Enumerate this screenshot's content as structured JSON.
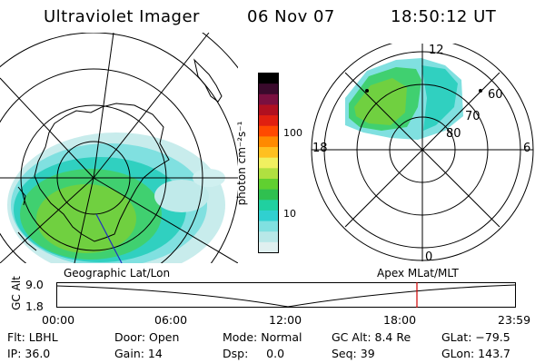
{
  "header": {
    "instrument": "Ultraviolet Imager",
    "date": "06 Nov 07",
    "time": "18:50:12 UT"
  },
  "colorbar": {
    "unit_label": "photon cm⁻²s⁻¹",
    "ticks": [
      "100",
      "10"
    ],
    "colors": [
      "#000000",
      "#3a0a2c",
      "#7a1040",
      "#b01020",
      "#e02010",
      "#ff4a00",
      "#ff8a00",
      "#ffc020",
      "#f0f060",
      "#b0e040",
      "#60d030",
      "#30c050",
      "#20d0a0",
      "#30d0d0",
      "#80e0e0",
      "#b8e8e8",
      "#e0f0f0"
    ]
  },
  "geo_panel": {
    "label": "Geographic Lat/Lon"
  },
  "mag_panel": {
    "label": "Apex MLat/MLT",
    "mlt_labels": {
      "top": "12",
      "left": "18",
      "right": "6",
      "bottom": "0"
    },
    "lat_labels": [
      "60",
      "70",
      "80"
    ]
  },
  "altitude_plot": {
    "ylabel": "GC Alt",
    "y_ticks": [
      "9.0",
      "1.8"
    ],
    "x_ticks": [
      "00:00",
      "06:00",
      "12:00",
      "18:00",
      "23:59"
    ],
    "marker_color": "#d00000"
  },
  "footer": {
    "filter": "Flt: LBHL",
    "ip": "IP: 36.0",
    "door": "Door: Open",
    "gain": "Gain: 14",
    "mode": "Mode: Normal",
    "dsp": "Dsp:     0.0",
    "gc_alt": "GC Alt: 8.4 Re",
    "seq": "Seq: 39",
    "glat": "GLat: −79.5",
    "glon": "GLon: 143.7"
  }
}
